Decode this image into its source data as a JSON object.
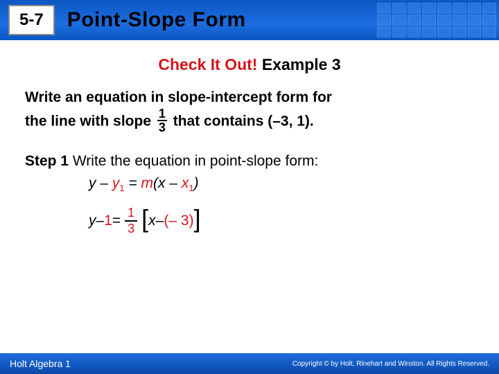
{
  "header": {
    "lesson_number": "5-7",
    "title": "Point-Slope Form",
    "bar_gradient_top": "#0b57c4",
    "bar_gradient_bottom": "#1d6de0"
  },
  "checkline": {
    "red_text": "Check It Out!",
    "black_text": " Example 3"
  },
  "problem": {
    "line1": "Write an equation in slope-intercept form for",
    "line2a": "the line with slope ",
    "frac_num": "1",
    "frac_den": "3",
    "line2b": " that contains (–3, 1)."
  },
  "step": {
    "label": "Step 1",
    "text": " Write the equation in point-slope form:"
  },
  "formula": {
    "y": "y",
    "minus": " – ",
    "y1": "y",
    "y1_sub": "1",
    "eq": " = ",
    "m": "m",
    "open": "(",
    "x": "x",
    "x1": "x",
    "x1_sub": "1",
    "close": ")"
  },
  "equation": {
    "y": "y",
    "minus": " – ",
    "one": "1",
    "eq": " = ",
    "frac_num": "1",
    "frac_den": "3",
    "lbracket": "[",
    "x": "x",
    "minus2": " – ",
    "paren_open": "(",
    "neg3": "– 3",
    "paren_close": ")",
    "rbracket": "]"
  },
  "footer": {
    "left": "Holt Algebra 1",
    "right": "Copyright © by Holt, Rinehart and Winston. All Rights Reserved."
  },
  "colors": {
    "red": "#d4151c",
    "blue": "#0b57c4",
    "text": "#000000"
  }
}
